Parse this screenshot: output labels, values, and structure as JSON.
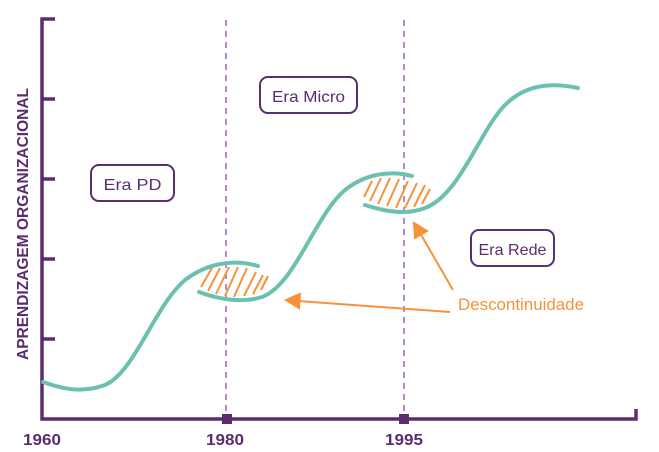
{
  "y_axis_label": "APRENDIZAGEM ORGANIZACIONAL",
  "x_ticks": [
    "1960",
    "1980",
    "1995"
  ],
  "eras": [
    "Era PD",
    "Era Micro",
    "Era Rede"
  ],
  "annotation": "Descontinuidade",
  "colors": {
    "axis": "#5a2d6e",
    "curve": "#6cc0b0",
    "annotation": "#f7923a",
    "divider": "#a36bc7"
  }
}
